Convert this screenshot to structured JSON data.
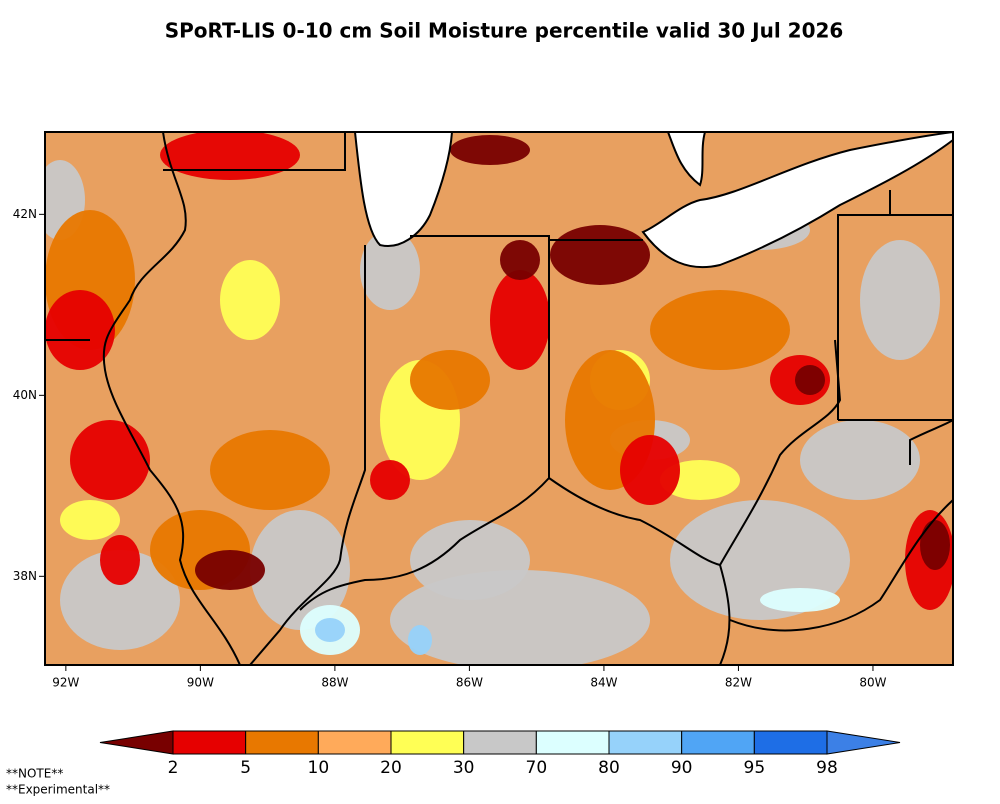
{
  "title": "SPoRT-LIS 0-10 cm Soil Moisture percentile valid 30 Jul 2026",
  "map": {
    "xlim": [
      -92.31,
      -78.81
    ],
    "ylim": [
      37.02,
      42.91
    ],
    "xticks": [
      {
        "value": -92,
        "label": "92W"
      },
      {
        "value": -90,
        "label": "90W"
      },
      {
        "value": -88,
        "label": "88W"
      },
      {
        "value": -86,
        "label": "86W"
      },
      {
        "value": -84,
        "label": "84W"
      },
      {
        "value": -82,
        "label": "82W"
      },
      {
        "value": -80,
        "label": "80W"
      }
    ],
    "yticks": [
      {
        "value": 42,
        "label": "42N"
      },
      {
        "value": 40,
        "label": "40N"
      },
      {
        "value": 38,
        "label": "38N"
      }
    ]
  },
  "colorbar": {
    "labels": [
      2,
      5,
      10,
      20,
      30,
      70,
      80,
      90,
      95,
      98
    ],
    "colors": [
      "#780000",
      "#e60000",
      "#e87800",
      "#ffaa5a",
      "#ffff55",
      "#c8c8c8",
      "#dcffff",
      "#96d2fa",
      "#50a5f5",
      "#1e6ee6",
      "#3c80e6"
    ]
  },
  "notes": [
    "**NOTE**",
    "**Experimental**"
  ]
}
